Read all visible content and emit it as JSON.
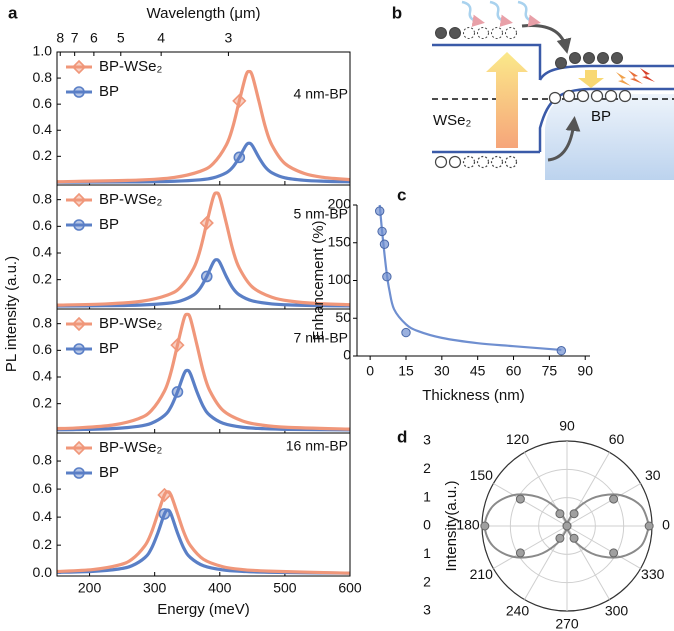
{
  "chart_data": [
    {
      "type": "line",
      "label": "a",
      "x_label": "Energy (meV)",
      "y_label": "PL intensity (a.u.)",
      "x2_label": "Wavelength (μm)",
      "xlim": [
        150,
        600
      ],
      "xticks": [
        200,
        300,
        400,
        500,
        600
      ],
      "x2ticks": [
        8,
        7,
        6,
        5,
        4,
        3
      ],
      "subplots": [
        {
          "annotation": "4 nm-BP",
          "ylim": [
            -0.02,
            1.0
          ],
          "yticks": [
            0.2,
            0.4,
            0.6,
            0.8,
            {
              "value": 1,
              "label": "1.0"
            }
          ],
          "x": [
            150,
            275,
            330,
            370,
            390,
            410,
            420,
            430,
            440,
            445,
            450,
            460,
            470,
            480,
            500,
            530,
            560,
            600
          ],
          "series": [
            {
              "name": "BP-WSe₂",
              "color": "#f0977a",
              "values": [
                0.005,
                0.018,
                0.038,
                0.085,
                0.145,
                0.287,
                0.425,
                0.625,
                0.818,
                0.85,
                0.818,
                0.625,
                0.425,
                0.287,
                0.145,
                0.068,
                0.038,
                0.021
              ]
            },
            {
              "name": "BP",
              "color": "#5a7fc6",
              "values": [
                0.002,
                0.004,
                0.009,
                0.02,
                0.035,
                0.074,
                0.117,
                0.192,
                0.282,
                0.3,
                0.282,
                0.192,
                0.117,
                0.074,
                0.035,
                0.016,
                0.009,
                0.005
              ]
            }
          ]
        },
        {
          "annotation": "5 nm-BP",
          "ylim": [
            -0.02,
            0.91
          ],
          "yticks": [
            0.2,
            0.4,
            0.6,
            0.8
          ],
          "x": [
            150,
            225,
            280,
            320,
            340,
            360,
            370,
            380,
            390,
            395,
            400,
            410,
            420,
            430,
            450,
            480,
            510,
            550,
            600
          ],
          "series": [
            {
              "name": "BP-WSe₂",
              "color": "#f0977a",
              "values": [
                0.009,
                0.018,
                0.038,
                0.085,
                0.145,
                0.287,
                0.425,
                0.625,
                0.818,
                0.85,
                0.818,
                0.625,
                0.425,
                0.287,
                0.145,
                0.068,
                0.038,
                0.021,
                0.012
              ]
            },
            {
              "name": "BP",
              "color": "#5a7fc6",
              "values": [
                0.002,
                0.005,
                0.01,
                0.023,
                0.041,
                0.086,
                0.137,
                0.224,
                0.329,
                0.35,
                0.329,
                0.224,
                0.137,
                0.086,
                0.041,
                0.018,
                0.01,
                0.006,
                0.003
              ]
            }
          ]
        },
        {
          "annotation": "7 nm-BP",
          "ylim": [
            -0.02,
            0.91
          ],
          "yticks": [
            0.2,
            0.4,
            0.6,
            0.8
          ],
          "x": [
            150,
            180,
            235,
            275,
            295,
            315,
            325,
            335,
            345,
            350,
            355,
            365,
            375,
            385,
            405,
            435,
            465,
            505,
            600
          ],
          "series": [
            {
              "name": "BP-WSe₂",
              "color": "#f0977a",
              "values": [
                0.013,
                0.018,
                0.039,
                0.087,
                0.149,
                0.294,
                0.435,
                0.639,
                0.837,
                0.87,
                0.837,
                0.639,
                0.435,
                0.294,
                0.149,
                0.07,
                0.039,
                0.022,
                0.009
              ]
            },
            {
              "name": "BP",
              "color": "#5a7fc6",
              "values": [
                0.004,
                0.006,
                0.013,
                0.03,
                0.053,
                0.111,
                0.176,
                0.288,
                0.423,
                0.45,
                0.423,
                0.288,
                0.176,
                0.111,
                0.053,
                0.023,
                0.013,
                0.007,
                0.003
              ]
            }
          ]
        },
        {
          "annotation": "16 nm-BP",
          "ylim": [
            -0.02,
            1.0
          ],
          "yticks": [
            {
              "value": 0,
              "label": "0.0"
            },
            0.2,
            0.4,
            0.6,
            0.8
          ],
          "x": [
            150,
            205,
            245,
            265,
            285,
            295,
            305,
            315,
            320,
            325,
            335,
            345,
            355,
            375,
            405,
            435,
            475,
            600
          ],
          "series": [
            {
              "name": "BP-WSe₂",
              "color": "#f0977a",
              "values": [
                0.012,
                0.026,
                0.058,
                0.099,
                0.196,
                0.29,
                0.426,
                0.558,
                0.58,
                0.558,
                0.426,
                0.29,
                0.196,
                0.099,
                0.046,
                0.026,
                0.015,
                0
              ]
            },
            {
              "name": "BP",
              "color": "#5a7fc6",
              "values": [
                0.006,
                0.013,
                0.03,
                0.053,
                0.111,
                0.176,
                0.288,
                0.423,
                0.45,
                0.423,
                0.288,
                0.176,
                0.111,
                0.053,
                0.023,
                0.013,
                0.007,
                0
              ]
            }
          ]
        }
      ]
    },
    {
      "type": "scatter",
      "label": "c",
      "x_label": "Thickness (nm)",
      "y_label": "Enhancement (%)",
      "color": "#6f8fd0",
      "xlim": [
        -5.5,
        92
      ],
      "xticks": [
        0,
        15,
        30,
        45,
        60,
        75,
        90
      ],
      "ylim": [
        0,
        200
      ],
      "yticks": [
        0,
        50,
        100,
        150,
        200
      ],
      "x": [
        4,
        5,
        6,
        7,
        15,
        80
      ],
      "values": [
        192,
        165,
        148,
        105,
        31,
        7
      ],
      "fit": {
        "x": [
          4,
          5,
          6,
          7,
          8,
          10,
          15,
          20,
          30,
          45,
          60,
          80
        ],
        "values": [
          200,
          165,
          135,
          108,
          88,
          62,
          42,
          33,
          24,
          17,
          13,
          8
        ]
      }
    },
    {
      "type": "polar",
      "label": "d",
      "y_label": "Intensity(a.u.)",
      "color": "#8a8a8a",
      "rlim": [
        0,
        3
      ],
      "rticks": [
        0,
        1,
        2,
        3
      ],
      "thetaticks": [
        0,
        30,
        60,
        90,
        120,
        150,
        180,
        210,
        240,
        270,
        300,
        330
      ],
      "theta": [
        0,
        30,
        60,
        90,
        120,
        150,
        180,
        210,
        240,
        270,
        300,
        330
      ],
      "values": [
        2.9,
        1.9,
        0.5,
        0,
        0.5,
        1.9,
        2.9,
        1.9,
        0.5,
        0,
        0.5,
        1.9
      ],
      "fit": {
        "theta": [
          0,
          15,
          30,
          45,
          60,
          75,
          90,
          105,
          120,
          135,
          150,
          165,
          180,
          195,
          210,
          225,
          240,
          255,
          270,
          285,
          300,
          315,
          330,
          345,
          360
        ],
        "values": [
          2.9,
          2.71,
          2.18,
          1.45,
          0.73,
          0.19,
          0,
          0.19,
          0.73,
          1.45,
          2.18,
          2.71,
          2.9,
          2.71,
          2.18,
          1.45,
          0.73,
          0.19,
          0,
          0.19,
          0.73,
          1.45,
          2.18,
          2.71,
          2.9
        ]
      }
    }
  ],
  "diagram": {
    "label": "b",
    "left_label": "WSe₂",
    "right_label": "BP"
  }
}
